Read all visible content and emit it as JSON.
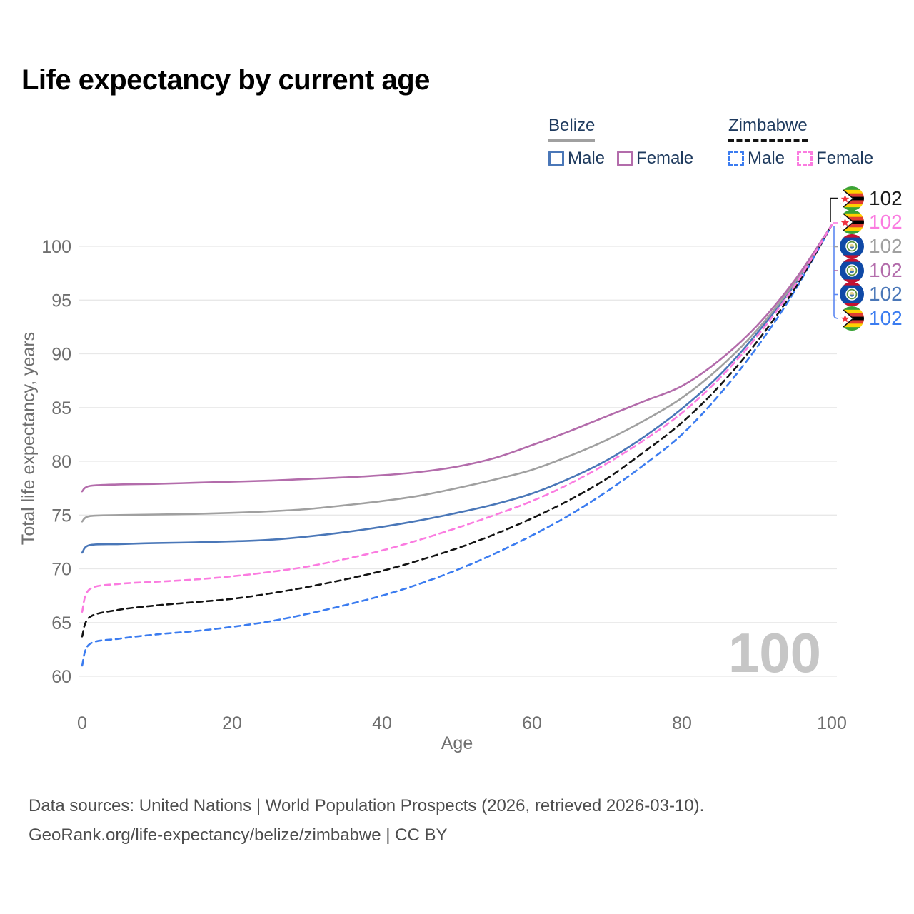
{
  "title": "Life expectancy by current age",
  "legend": {
    "groups": [
      {
        "label": "Belize",
        "line_color": "#a0a0a0",
        "line_style": "solid",
        "items": [
          {
            "label": "Male",
            "color": "#4a77b8",
            "style": "solid"
          },
          {
            "label": "Female",
            "color": "#b36cab",
            "style": "solid"
          }
        ]
      },
      {
        "label": "Zimbabwe",
        "line_color": "#141414",
        "line_style": "dashed",
        "items": [
          {
            "label": "Male",
            "color": "#3b7cf0",
            "style": "dashed"
          },
          {
            "label": "Female",
            "color": "#fb7be0",
            "style": "dashed"
          }
        ]
      }
    ]
  },
  "watermark": "100",
  "chart_data": {
    "type": "line",
    "title": "Life expectancy by current age",
    "xlabel": "Age",
    "ylabel": "Total life expectancy, years",
    "xlim": [
      0,
      100
    ],
    "ylim": [
      60,
      102.5
    ],
    "x_ticks": [
      0,
      20,
      40,
      60,
      80,
      100
    ],
    "y_ticks": [
      60,
      65,
      70,
      75,
      80,
      85,
      90,
      95,
      100
    ],
    "grid": "horizontal",
    "legend_position": "top-right",
    "x": [
      0,
      1,
      5,
      10,
      15,
      20,
      25,
      30,
      35,
      40,
      45,
      50,
      55,
      60,
      65,
      70,
      75,
      80,
      85,
      90,
      95,
      100
    ],
    "series": [
      {
        "name": "Belize Male",
        "color": "#4a77b8",
        "dash": "solid",
        "values": [
          71.5,
          72.2,
          72.3,
          72.4,
          72.45,
          72.55,
          72.7,
          73.0,
          73.4,
          73.9,
          74.5,
          75.2,
          76.0,
          77.0,
          78.4,
          80.1,
          82.3,
          84.9,
          88.0,
          91.9,
          96.4,
          102
        ],
        "end_value": 102
      },
      {
        "name": "Belize",
        "color": "#a0a0a0",
        "dash": "solid",
        "values": [
          74.4,
          74.9,
          75.0,
          75.05,
          75.1,
          75.2,
          75.35,
          75.55,
          75.9,
          76.3,
          76.8,
          77.5,
          78.3,
          79.2,
          80.5,
          82.0,
          83.8,
          85.9,
          88.7,
          92.2,
          96.6,
          102
        ],
        "end_value": 102
      },
      {
        "name": "Belize Female",
        "color": "#b36cab",
        "dash": "solid",
        "values": [
          77.2,
          77.7,
          77.85,
          77.9,
          78.0,
          78.1,
          78.2,
          78.35,
          78.5,
          78.7,
          79.0,
          79.5,
          80.3,
          81.5,
          82.8,
          84.2,
          85.6,
          87.0,
          89.4,
          92.6,
          96.8,
          102
        ],
        "end_value": 102
      },
      {
        "name": "Zimbabwe Male",
        "color": "#3b7cf0",
        "dash": "dashed",
        "values": [
          61.0,
          63.0,
          63.5,
          63.9,
          64.2,
          64.6,
          65.1,
          65.8,
          66.6,
          67.5,
          68.6,
          69.9,
          71.4,
          73.1,
          75.0,
          77.2,
          79.7,
          82.5,
          86.2,
          90.6,
          95.8,
          102
        ],
        "end_value": 102
      },
      {
        "name": "Zimbabwe",
        "color": "#141414",
        "dash": "dashed",
        "values": [
          63.7,
          65.5,
          66.2,
          66.6,
          66.9,
          67.2,
          67.7,
          68.3,
          69.0,
          69.8,
          70.8,
          71.9,
          73.2,
          74.7,
          76.4,
          78.4,
          80.9,
          83.6,
          87.0,
          91.1,
          96.0,
          102
        ],
        "end_value": 102
      },
      {
        "name": "Zimbabwe Female",
        "color": "#fb7be0",
        "dash": "dashed",
        "values": [
          66.0,
          68.1,
          68.6,
          68.8,
          69.0,
          69.3,
          69.7,
          70.2,
          70.9,
          71.7,
          72.7,
          73.8,
          75.0,
          76.3,
          77.9,
          79.8,
          82.0,
          84.5,
          87.7,
          91.6,
          96.3,
          102
        ],
        "end_value": 102
      }
    ]
  },
  "endpoint_labels": [
    {
      "flag": "zimbabwe",
      "series": "Zimbabwe",
      "value": "102",
      "color": "#1a1a1a"
    },
    {
      "flag": "zimbabwe",
      "series": "Zimbabwe Female",
      "value": "102",
      "color": "#fb7be0"
    },
    {
      "flag": "belize",
      "series": "Belize",
      "value": "102",
      "color": "#a0a0a0"
    },
    {
      "flag": "belize",
      "series": "Belize Female",
      "value": "102",
      "color": "#b36cab"
    },
    {
      "flag": "belize",
      "series": "Belize Male",
      "value": "102",
      "color": "#4a77b8"
    },
    {
      "flag": "zimbabwe",
      "series": "Zimbabwe Male",
      "value": "102",
      "color": "#3b7cf0"
    }
  ],
  "flag_colors": {
    "zimbabwe": {
      "stripes": [
        "#3aa335",
        "#ffd100",
        "#e03c31",
        "#000000",
        "#e03c31",
        "#ffd100",
        "#3aa335"
      ],
      "triangle": "#ffffff",
      "star": "#ef3340",
      "outline": "#141414"
    },
    "belize": {
      "field": "#0f49a6",
      "stripe": "#c8102e",
      "disc": "#ffffff",
      "ring": "#5c913b",
      "center": "#e9d48a",
      "center2": "#3f76b5"
    }
  },
  "colors": {
    "title": "#1c3a5e",
    "axis_text": "#6f6f6f",
    "gridline": "#e8e8e8",
    "watermark": "#c6c6c6",
    "leader_blue": "#5b87f2",
    "leader_black": "#141414",
    "leader_pink": "#fb7be0",
    "leader_gray": "#a0a0a0",
    "leader_purple": "#b36cab"
  },
  "footer": {
    "line1": "Data sources: United Nations | World Population Prospects (2026, retrieved 2026-03-10).",
    "line2": "GeoRank.org/life-expectancy/belize/zimbabwe | CC BY"
  }
}
